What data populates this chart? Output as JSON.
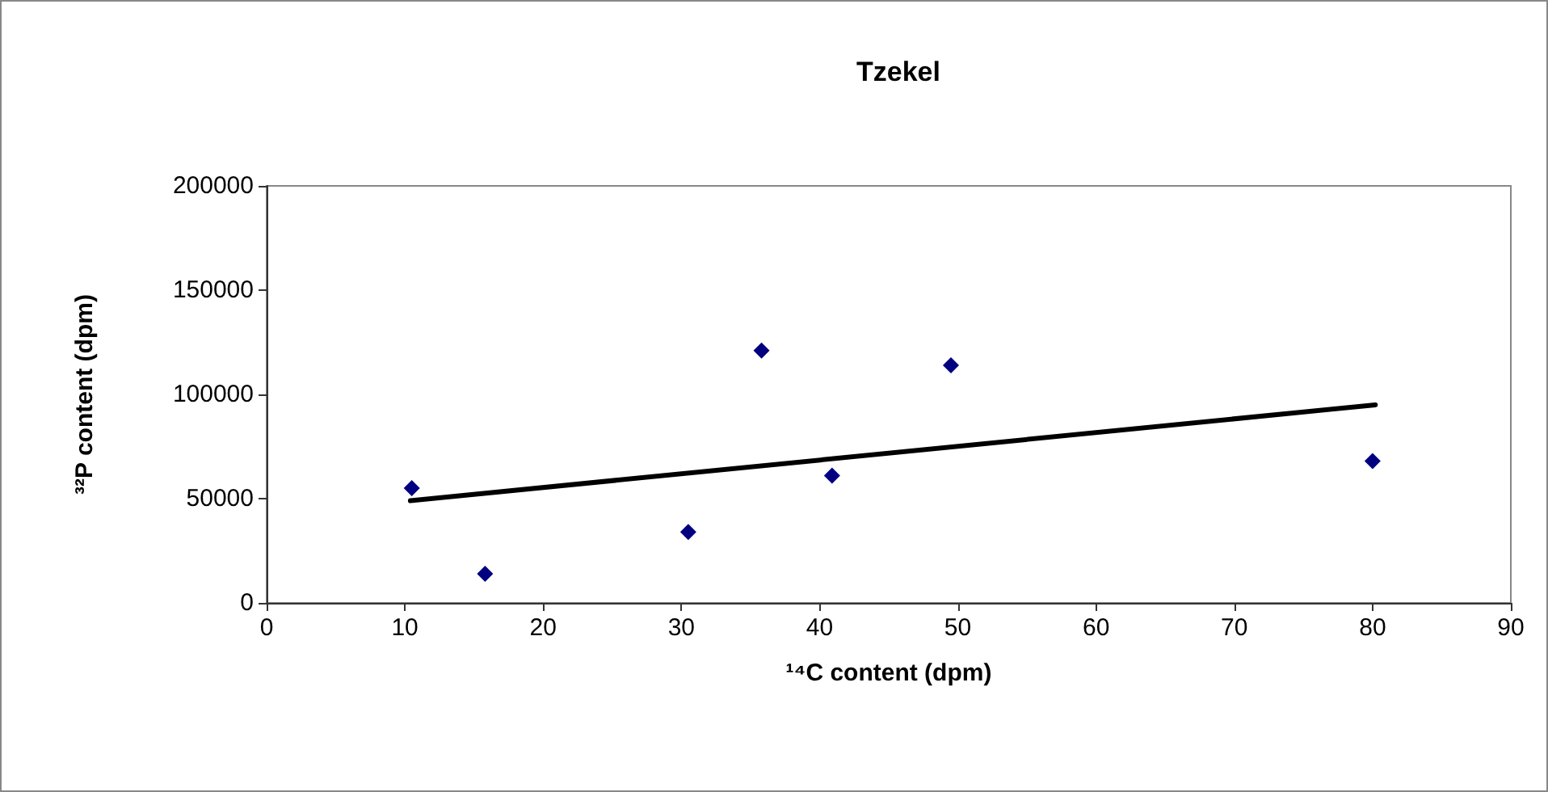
{
  "chart_data": {
    "type": "scatter",
    "title": "Tzekel",
    "xlabel": "¹⁴C content (dpm)",
    "ylabel": "³²P content (dpm)",
    "xlim": [
      0,
      90
    ],
    "xticks": [
      0,
      10,
      20,
      30,
      40,
      50,
      60,
      70,
      80,
      90
    ],
    "ylim": [
      0,
      200000
    ],
    "yticks": [
      0,
      50000,
      100000,
      150000,
      200000
    ],
    "grid": false,
    "marker": "diamond",
    "series": [
      {
        "type": "scatter",
        "color": "#000080",
        "x": [
          10.5,
          15.8,
          30.5,
          35.8,
          40.9,
          49.5,
          80.0
        ],
        "values": [
          55000,
          14000,
          34000,
          121000,
          61000,
          114000,
          68000
        ]
      },
      {
        "type": "line",
        "color": "#000000",
        "marker": "none",
        "line_style": "solid",
        "x": [
          10.4,
          80.2
        ],
        "values": [
          49000,
          95000
        ]
      }
    ]
  }
}
